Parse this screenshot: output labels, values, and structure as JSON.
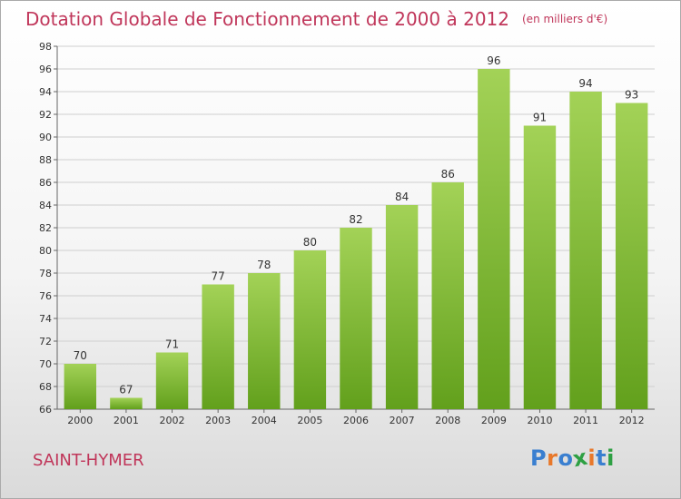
{
  "header": {
    "title": "Dotation Globale de Fonctionnement de 2000 à 2012",
    "subtitle": "(en milliers d'€)"
  },
  "footer": {
    "commune": "SAINT-HYMER",
    "logo_text": "Proxiti",
    "logo_colors": [
      "#3a7fd0",
      "#e8782a",
      "#3a7fd0",
      "#2ea043",
      "#e8782a",
      "#3a7fd0",
      "#2ea043"
    ]
  },
  "colors": {
    "title": "#c0365a",
    "bar_light": "#a3d257",
    "bar_dark": "#62a01c"
  },
  "chart_data": {
    "type": "bar",
    "categories": [
      "2000",
      "2001",
      "2002",
      "2003",
      "2004",
      "2005",
      "2006",
      "2007",
      "2008",
      "2009",
      "2010",
      "2011",
      "2012"
    ],
    "values": [
      70,
      67,
      71,
      77,
      78,
      80,
      82,
      84,
      86,
      96,
      91,
      94,
      93
    ],
    "ylim": [
      66,
      98
    ],
    "yticks": [
      66,
      68,
      70,
      72,
      74,
      76,
      78,
      80,
      82,
      84,
      86,
      88,
      90,
      92,
      94,
      96,
      98
    ],
    "grid": true,
    "data_labels": true
  }
}
